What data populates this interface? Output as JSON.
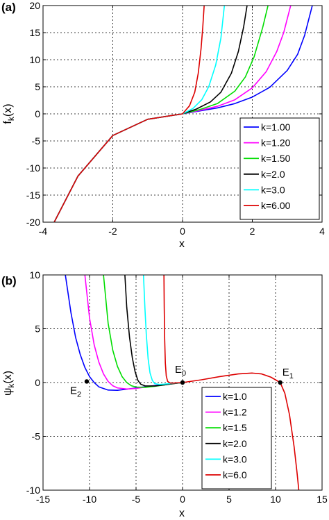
{
  "chart_data": [
    {
      "panel_label": "(a)",
      "type": "line",
      "xlabel": "x",
      "ylabel_main": "f",
      "ylabel_sub": "k",
      "ylabel_tail": "(x)",
      "xlim": [
        -4,
        4
      ],
      "ylim": [
        -20,
        20
      ],
      "xticks": [
        -4,
        -2,
        0,
        2,
        4
      ],
      "yticks": [
        -20,
        -15,
        -10,
        -5,
        0,
        5,
        10,
        15,
        20
      ],
      "grid": true,
      "legend_position": "lower-right",
      "series": [
        {
          "name": "k=1.00",
          "color": "#0000ff",
          "x": [
            -3.8,
            -3.0,
            -2.0,
            -1.0,
            0,
            0.5,
            1.0,
            1.5,
            2.0,
            2.5,
            3.0,
            3.3,
            3.5,
            3.72
          ],
          "y": [
            -21.5,
            -11.5,
            -4.0,
            -1.0,
            0,
            0.55,
            1.1,
            1.9,
            3.1,
            4.9,
            8.0,
            11.0,
            14.5,
            20
          ]
        },
        {
          "name": "k=1.20",
          "color": "#ff00ff",
          "x": [
            -3.8,
            -3.0,
            -2.0,
            -1.0,
            0,
            0.5,
            1.0,
            1.5,
            2.0,
            2.4,
            2.7,
            2.9,
            3.1
          ],
          "y": [
            -21.5,
            -11.5,
            -4.0,
            -1.0,
            0,
            0.65,
            1.4,
            2.6,
            4.8,
            7.8,
            11.5,
            15.0,
            20
          ]
        },
        {
          "name": "k=1.50",
          "color": "#00dd00",
          "x": [
            -3.8,
            -3.0,
            -2.0,
            -1.0,
            0,
            0.5,
            1.0,
            1.5,
            1.8,
            2.05,
            2.3,
            2.45
          ],
          "y": [
            -21.5,
            -11.5,
            -4.0,
            -1.0,
            0,
            0.8,
            1.9,
            4.2,
            6.8,
            10.5,
            16.0,
            20
          ]
        },
        {
          "name": "k=2.0",
          "color": "#000000",
          "x": [
            -3.8,
            -3.0,
            -2.0,
            -1.0,
            0,
            0.4,
            0.8,
            1.1,
            1.4,
            1.6,
            1.75,
            1.85
          ],
          "y": [
            -21.5,
            -11.5,
            -4.0,
            -1.0,
            0,
            0.9,
            2.2,
            4.0,
            7.5,
            11.5,
            16.0,
            20
          ]
        },
        {
          "name": "k=3.0",
          "color": "#00ffff",
          "x": [
            -3.8,
            -3.0,
            -2.0,
            -1.0,
            0,
            0.3,
            0.55,
            0.75,
            0.95,
            1.1,
            1.2
          ],
          "y": [
            -21.5,
            -11.5,
            -4.0,
            -1.0,
            0,
            1.0,
            2.6,
            5.0,
            9.0,
            14.0,
            20
          ]
        },
        {
          "name": "k=6.00",
          "color": "#dd0000",
          "x": [
            -3.8,
            -3.0,
            -2.0,
            -1.0,
            0,
            0.2,
            0.35,
            0.45,
            0.53,
            0.58,
            0.62
          ],
          "y": [
            -21.5,
            -11.5,
            -4.0,
            -1.0,
            0,
            1.5,
            4.0,
            7.5,
            12.0,
            16.0,
            20
          ]
        }
      ]
    },
    {
      "panel_label": "(b)",
      "type": "line",
      "xlabel": "x",
      "ylabel_main": "ψ",
      "ylabel_sub": "k",
      "ylabel_tail": "(x)",
      "xlim": [
        -15,
        15
      ],
      "ylim": [
        -10,
        10
      ],
      "xticks": [
        -15,
        -10,
        -5,
        0,
        5,
        10,
        15
      ],
      "xtick_labels": [
        "-15",
        "-10",
        "-5",
        "0",
        "5",
        "10",
        "15"
      ],
      "yticks": [
        -10,
        -5,
        0,
        5,
        10
      ],
      "grid": true,
      "legend_position": "lower-right",
      "series": [
        {
          "name": "k=1.0",
          "color": "#0000ff",
          "x": [
            -12.6,
            -12.0,
            -11.5,
            -11.0,
            -10.5,
            -10.0,
            -9.5,
            -9.0,
            -8.0,
            -7.0,
            -6.0,
            -5.0,
            -3.0,
            -1.0,
            0
          ],
          "y": [
            10,
            6.5,
            4.2,
            2.6,
            1.4,
            0.55,
            0.0,
            -0.4,
            -0.7,
            -0.72,
            -0.62,
            -0.5,
            -0.28,
            -0.08,
            0
          ]
        },
        {
          "name": "k=1.2",
          "color": "#ff00ff",
          "x": [
            -10.5,
            -10.0,
            -9.5,
            -9.0,
            -8.5,
            -8.0,
            -7.5,
            -7.0,
            -6.0,
            -5.0,
            -3.0,
            -1.0,
            0
          ],
          "y": [
            10,
            6.0,
            3.5,
            1.9,
            0.8,
            0.1,
            -0.3,
            -0.5,
            -0.6,
            -0.55,
            -0.3,
            -0.08,
            0
          ]
        },
        {
          "name": "k=1.5",
          "color": "#00dd00",
          "x": [
            -8.5,
            -8.0,
            -7.5,
            -7.0,
            -6.5,
            -6.0,
            -5.5,
            -5.0,
            -4.0,
            -3.0,
            -1.0,
            0
          ],
          "y": [
            10,
            5.5,
            3.0,
            1.5,
            0.55,
            0.0,
            -0.3,
            -0.42,
            -0.45,
            -0.35,
            -0.1,
            0
          ]
        },
        {
          "name": "k=2.0",
          "color": "#000000",
          "x": [
            -6.2,
            -6.0,
            -5.7,
            -5.4,
            -5.1,
            -4.8,
            -4.5,
            -4.0,
            -3.0,
            -2.0,
            -1.0,
            0
          ],
          "y": [
            10,
            7.0,
            4.2,
            2.3,
            1.0,
            0.2,
            -0.15,
            -0.32,
            -0.32,
            -0.22,
            -0.1,
            0
          ]
        },
        {
          "name": "k=3.0",
          "color": "#00ffff",
          "x": [
            -4.2,
            -4.05,
            -3.9,
            -3.7,
            -3.5,
            -3.25,
            -3.0,
            -2.5,
            -2.0,
            -1.0,
            0
          ],
          "y": [
            10,
            7.0,
            4.5,
            2.2,
            0.9,
            0.2,
            -0.1,
            -0.18,
            -0.15,
            -0.07,
            0
          ]
        },
        {
          "name": "k=6.0",
          "color": "#dd0000",
          "x": [
            -2.0,
            -1.97,
            -1.92,
            -1.85,
            -1.75,
            -1.6,
            -1.3,
            -1.0,
            0,
            2.0,
            4.0,
            6.0,
            7.5,
            8.5,
            9.5,
            10.5,
            11.0,
            11.5,
            12.0,
            12.3,
            12.5
          ],
          "y": [
            10,
            7.0,
            4.0,
            1.8,
            0.6,
            0.1,
            -0.05,
            -0.05,
            0,
            0.25,
            0.55,
            0.8,
            0.88,
            0.8,
            0.5,
            0.0,
            -1.0,
            -3.0,
            -6.0,
            -8.3,
            -10
          ]
        }
      ],
      "annotations": [
        {
          "label": "E",
          "sub": "0",
          "x": 0,
          "y": 0
        },
        {
          "label": "E",
          "sub": "1",
          "x": 10.5,
          "y": 0
        },
        {
          "label": "E",
          "sub": "2",
          "x": -10.3,
          "y": 0.1
        }
      ]
    }
  ]
}
